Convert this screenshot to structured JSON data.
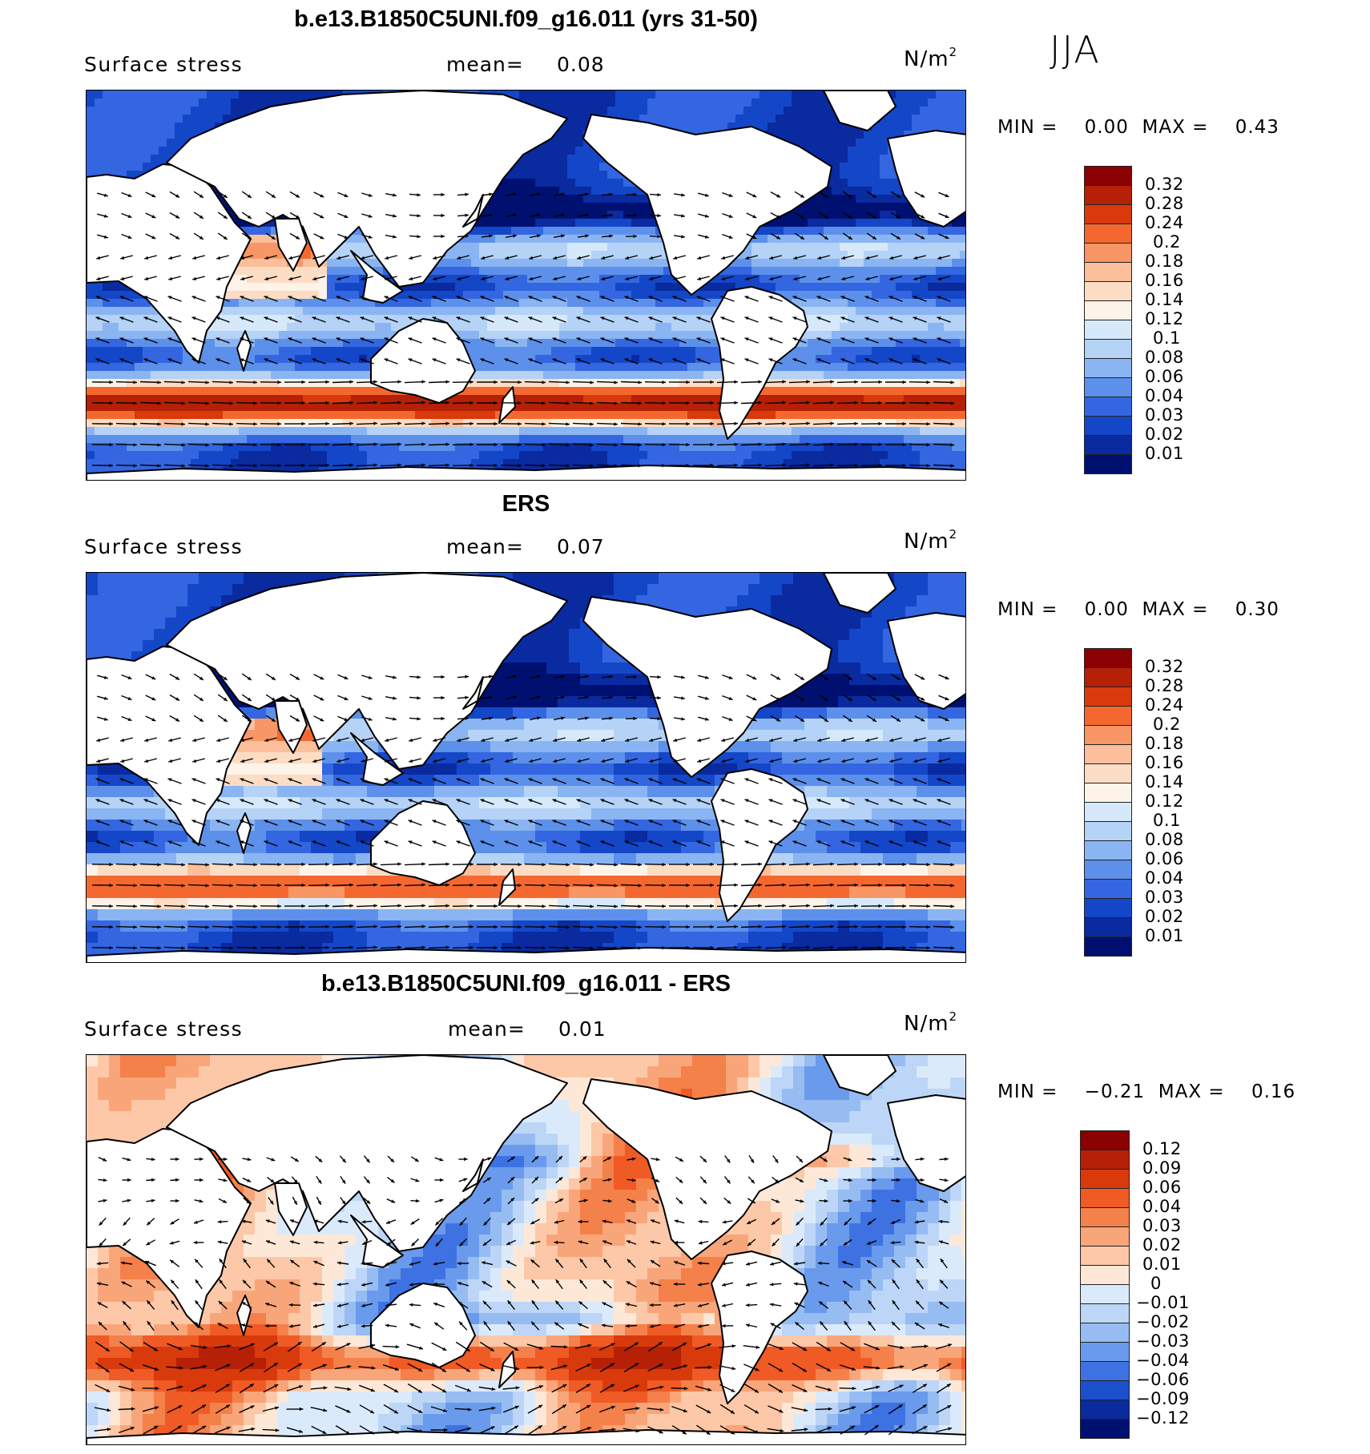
{
  "season": "JJA",
  "panels": [
    {
      "id": "model",
      "title": "b.e13.B1850C5UNI.f09_g16.011 (yrs 31-50)",
      "variable": "Surface stress",
      "mean_label": "mean=",
      "mean_value": "0.08",
      "units_base": "N/m",
      "units_exp": "2",
      "min_label": "MIN =",
      "min_value": "0.00",
      "max_label": "MAX =",
      "max_value": "0.43",
      "legend_levels": [
        "0.32",
        "0.28",
        "0.24",
        "0.2",
        "0.18",
        "0.16",
        "0.14",
        "0.12",
        "0.1",
        "0.08",
        "0.06",
        "0.04",
        "0.03",
        "0.02",
        "0.01"
      ],
      "legend_colors": [
        "#8b0000",
        "#b52006",
        "#d83a0c",
        "#f4682f",
        "#f99665",
        "#fbbf9b",
        "#fddcc4",
        "#fdf3e8",
        "#d6e9fb",
        "#b5d2f7",
        "#8ab5f2",
        "#5c90eb",
        "#3366e0",
        "#1446c8",
        "#0a2aa0",
        "#001070"
      ]
    },
    {
      "id": "obs",
      "title": "ERS",
      "variable": "Surface stress",
      "mean_label": "mean=",
      "mean_value": "0.07",
      "units_base": "N/m",
      "units_exp": "2",
      "min_label": "MIN =",
      "min_value": "0.00",
      "max_label": "MAX =",
      "max_value": "0.30",
      "legend_levels": [
        "0.32",
        "0.28",
        "0.24",
        "0.2",
        "0.18",
        "0.16",
        "0.14",
        "0.12",
        "0.1",
        "0.08",
        "0.06",
        "0.04",
        "0.03",
        "0.02",
        "0.01"
      ],
      "legend_colors": [
        "#8b0000",
        "#b52006",
        "#d83a0c",
        "#f4682f",
        "#f99665",
        "#fbbf9b",
        "#fddcc4",
        "#fdf3e8",
        "#d6e9fb",
        "#b5d2f7",
        "#8ab5f2",
        "#5c90eb",
        "#3366e0",
        "#1446c8",
        "#0a2aa0",
        "#001070"
      ]
    },
    {
      "id": "diff",
      "title": "b.e13.B1850C5UNI.f09_g16.011 - ERS",
      "variable": "Surface stress",
      "mean_label": "mean=",
      "mean_value": "0.01",
      "units_base": "N/m",
      "units_exp": "2",
      "min_label": "MIN =",
      "min_value": "−0.21",
      "max_label": "MAX =",
      "max_value": "0.16",
      "legend_levels": [
        "0.12",
        "0.09",
        "0.06",
        "0.04",
        "0.03",
        "0.02",
        "0.01",
        "0",
        "−0.01",
        "−0.02",
        "−0.03",
        "−0.04",
        "−0.06",
        "−0.09",
        "−0.12"
      ],
      "legend_colors": [
        "#8b0000",
        "#b52006",
        "#d83a0c",
        "#f05a24",
        "#f4804a",
        "#f9a57a",
        "#fcc8a8",
        "#fde8d8",
        "#dbeafb",
        "#bdd6f7",
        "#96bcf2",
        "#6a9aec",
        "#3e72e2",
        "#1c4fcc",
        "#0a2aa0",
        "#001070"
      ]
    }
  ]
}
